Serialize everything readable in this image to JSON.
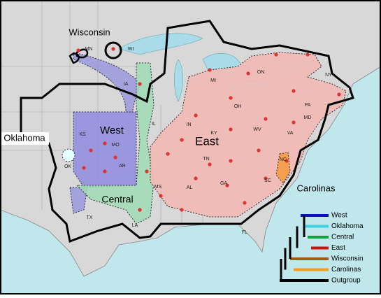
{
  "regions": [
    {
      "label": "Wisconsin"
    },
    {
      "label": "Oklahoma"
    },
    {
      "label": "West"
    },
    {
      "label": "East"
    },
    {
      "label": "Central"
    },
    {
      "label": "Carolinas"
    }
  ],
  "states": [
    "MN",
    "WI",
    "IA",
    "MI",
    "ON",
    "NY",
    "PA",
    "OH",
    "IN",
    "IL",
    "KY",
    "WV",
    "VA",
    "MD",
    "KS",
    "MO",
    "OK",
    "AR",
    "TN",
    "NC",
    "SC",
    "GA",
    "AL",
    "MS",
    "LA",
    "TX",
    "FL"
  ],
  "legend": [
    {
      "name": "West",
      "color": "#1010c0"
    },
    {
      "name": "Oklahoma",
      "color": "#40d0e0"
    },
    {
      "name": "Central",
      "color": "#10a040"
    },
    {
      "name": "East",
      "color": "#d01010"
    },
    {
      "name": "Wisconsin",
      "color": "#a05a20"
    },
    {
      "name": "Carolinas",
      "color": "#f0a020"
    },
    {
      "name": "Outgroup",
      "color": "#000000"
    }
  ]
}
